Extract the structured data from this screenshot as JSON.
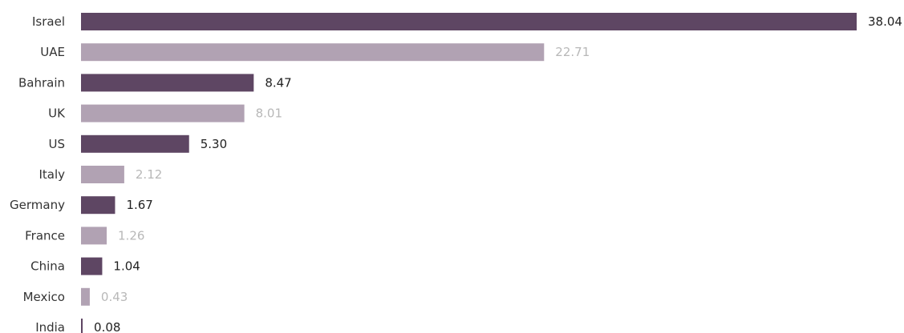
{
  "chart_data": {
    "type": "bar",
    "orientation": "horizontal",
    "categories": [
      "Israel",
      "UAE",
      "Bahrain",
      "UK",
      "US",
      "Italy",
      "Germany",
      "France",
      "China",
      "Mexico",
      "India"
    ],
    "values": [
      38.04,
      22.71,
      8.47,
      8.01,
      5.3,
      2.12,
      1.67,
      1.26,
      1.04,
      0.43,
      0.08
    ],
    "value_labels": [
      "38.04",
      "22.71",
      "8.47",
      "8.01",
      "5.30",
      "2.12",
      "1.67",
      "1.26",
      "1.04",
      "0.43",
      "0.08"
    ],
    "title": "",
    "xlabel": "",
    "ylabel": "",
    "xlim": [
      0,
      38.04
    ],
    "grid": false,
    "legend": "none",
    "colors": {
      "dark_bar": "#5e4663",
      "light_bar": "#b1a2b3",
      "dark_label": "#222222",
      "light_label": "#b8b8b8"
    },
    "color_pattern": [
      "dark",
      "light",
      "dark",
      "light",
      "dark",
      "light",
      "dark",
      "light",
      "dark",
      "light",
      "dark"
    ]
  }
}
